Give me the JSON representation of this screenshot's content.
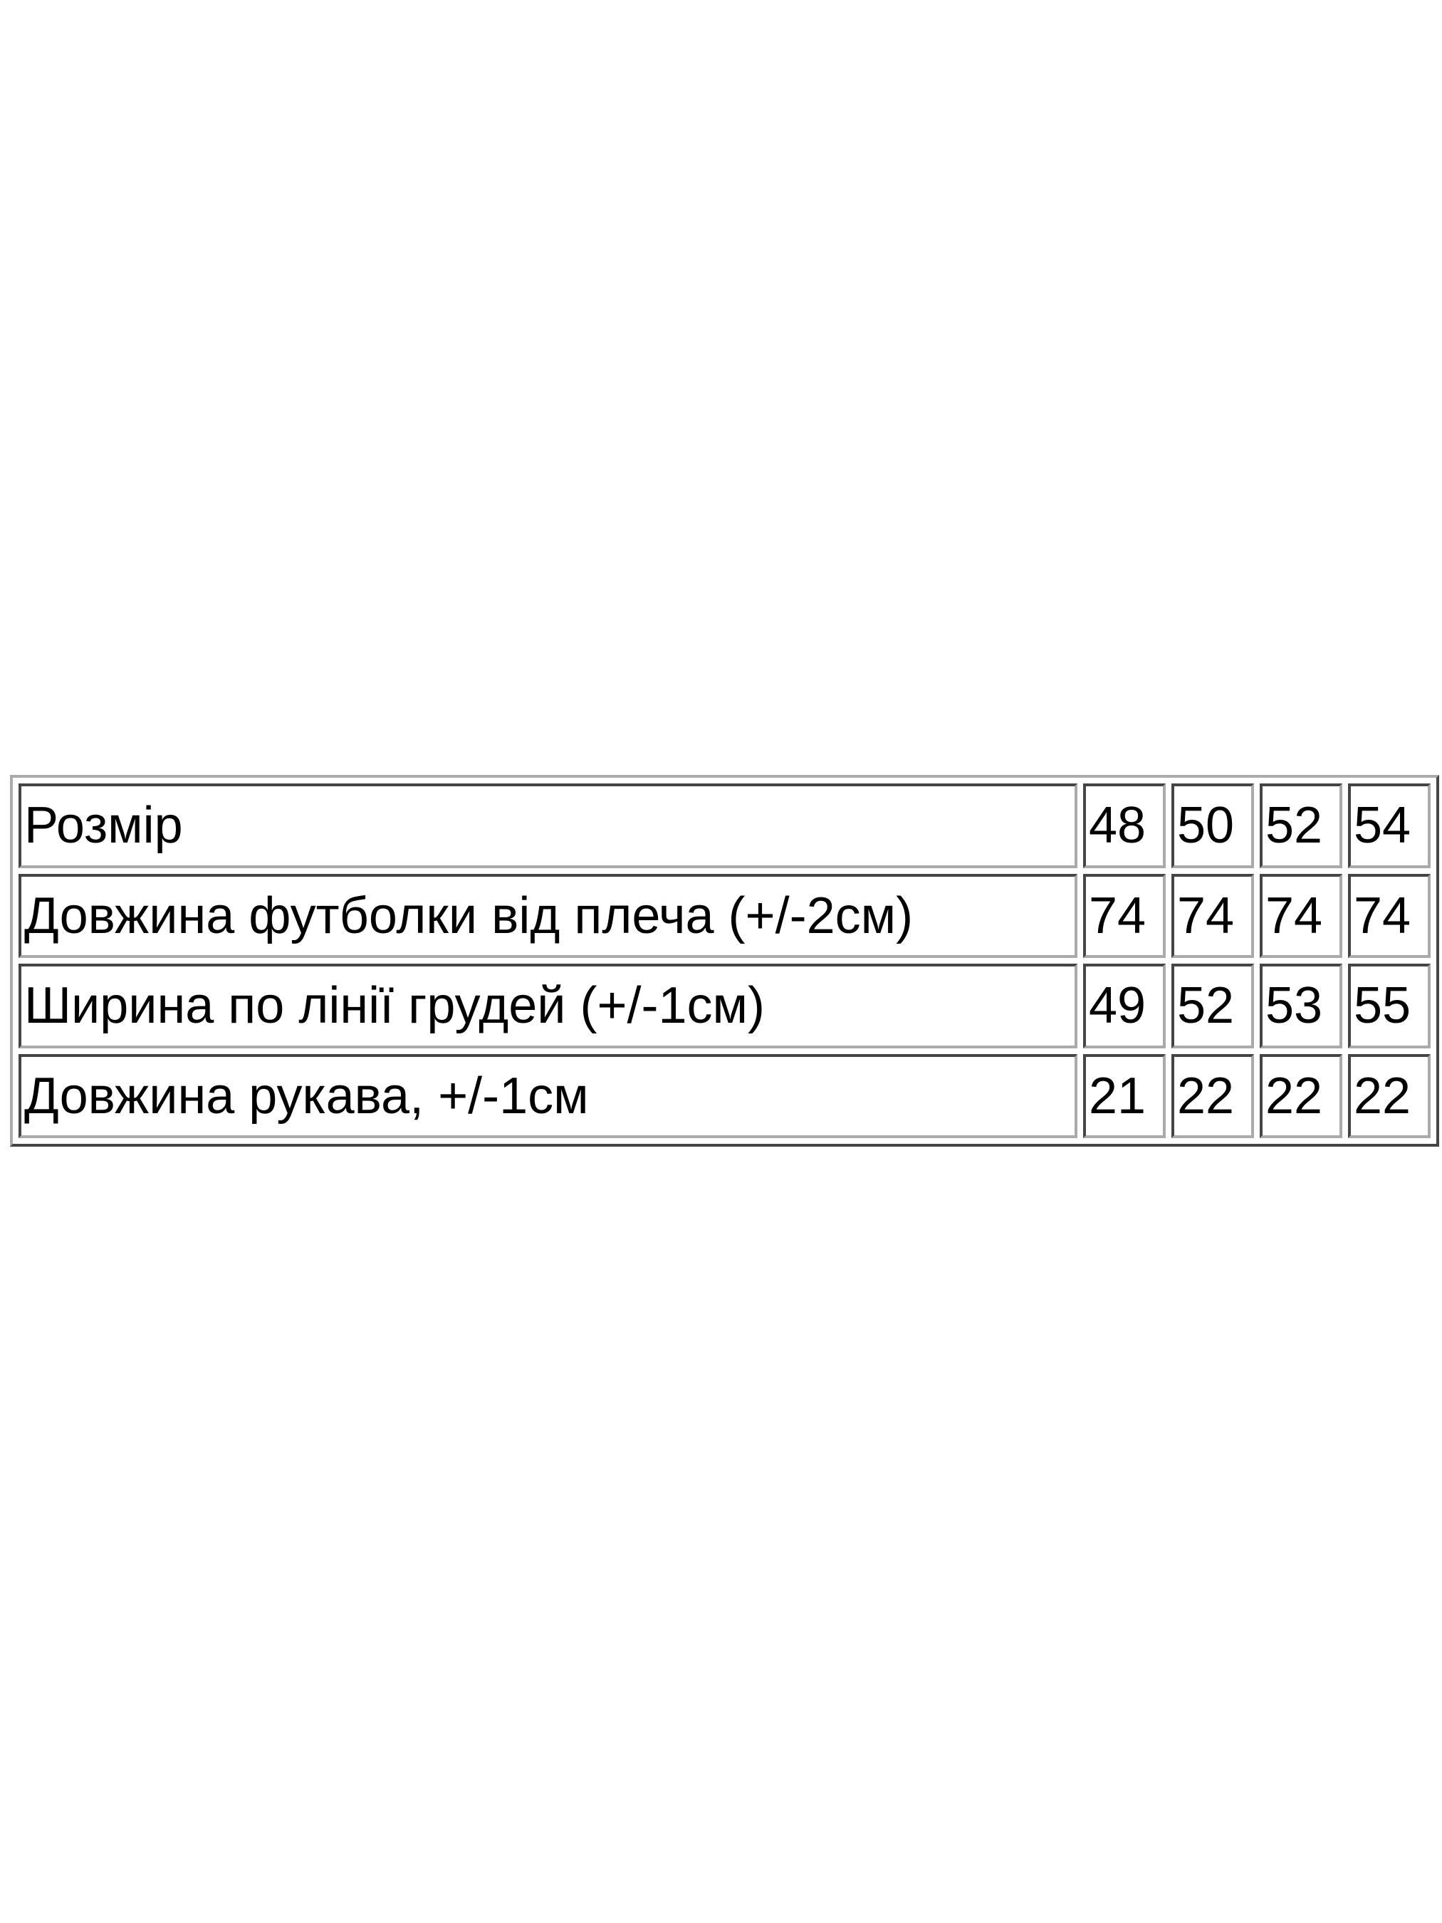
{
  "size_table": {
    "rows": [
      {
        "label": "Розмір",
        "values": [
          "48",
          "50",
          "52",
          "54"
        ]
      },
      {
        "label": "Довжина футболки від плеча (+/-2см)",
        "values": [
          "74",
          "74",
          "74",
          "74"
        ]
      },
      {
        "label": "Ширина по лінії грудей (+/-1см)",
        "values": [
          "49",
          "52",
          "53",
          "55"
        ]
      },
      {
        "label": "Довжина рукава, +/-1см",
        "values": [
          "21",
          "22",
          "22",
          "22"
        ]
      }
    ]
  }
}
